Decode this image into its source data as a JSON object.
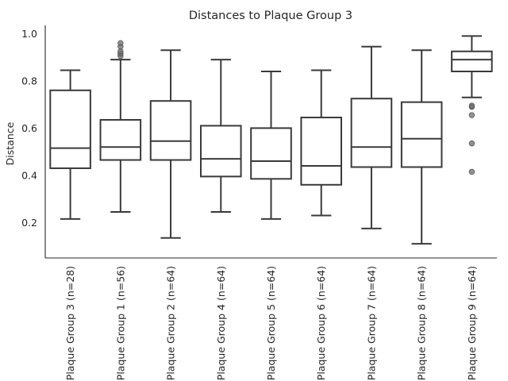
{
  "chart_data": {
    "type": "box",
    "title": "Distances to Plaque Group 3",
    "xlabel": "",
    "ylabel": "Distance",
    "ylim": [
      0.05,
      1.035
    ],
    "yticks": [
      "0.2",
      "0.4",
      "0.6",
      "0.8",
      "1.0"
    ],
    "ytick_values": [
      0.2,
      0.4,
      0.6,
      0.8,
      1.0
    ],
    "categories": [
      "Plaque Group 3 (n=28)",
      "Plaque Group 1 (n=56)",
      "Plaque Group 2 (n=64)",
      "Plaque Group 4 (n=64)",
      "Plaque Group 5 (n=64)",
      "Plaque Group 6 (n=64)",
      "Plaque Group 7 (n=64)",
      "Plaque Group 8 (n=64)",
      "Plaque Group 9 (n=64)"
    ],
    "boxes": [
      {
        "whislo": 0.215,
        "q1": 0.43,
        "med": 0.515,
        "q3": 0.76,
        "whishi": 0.845,
        "fliers": []
      },
      {
        "whislo": 0.245,
        "q1": 0.465,
        "med": 0.52,
        "q3": 0.635,
        "whishi": 0.89,
        "fliers": [
          0.905,
          0.915,
          0.925,
          0.945,
          0.96
        ]
      },
      {
        "whislo": 0.135,
        "q1": 0.465,
        "med": 0.545,
        "q3": 0.715,
        "whishi": 0.93,
        "fliers": []
      },
      {
        "whislo": 0.245,
        "q1": 0.395,
        "med": 0.47,
        "q3": 0.61,
        "whishi": 0.89,
        "fliers": []
      },
      {
        "whislo": 0.215,
        "q1": 0.385,
        "med": 0.46,
        "q3": 0.6,
        "whishi": 0.84,
        "fliers": []
      },
      {
        "whislo": 0.23,
        "q1": 0.36,
        "med": 0.44,
        "q3": 0.645,
        "whishi": 0.845,
        "fliers": []
      },
      {
        "whislo": 0.175,
        "q1": 0.435,
        "med": 0.52,
        "q3": 0.725,
        "whishi": 0.945,
        "fliers": []
      },
      {
        "whislo": 0.11,
        "q1": 0.435,
        "med": 0.555,
        "q3": 0.71,
        "whishi": 0.93,
        "fliers": []
      },
      {
        "whislo": 0.73,
        "q1": 0.84,
        "med": 0.89,
        "q3": 0.925,
        "whishi": 0.99,
        "fliers": [
          0.69,
          0.695,
          0.655,
          0.535,
          0.415
        ]
      }
    ],
    "grid": false,
    "legend": "none"
  }
}
